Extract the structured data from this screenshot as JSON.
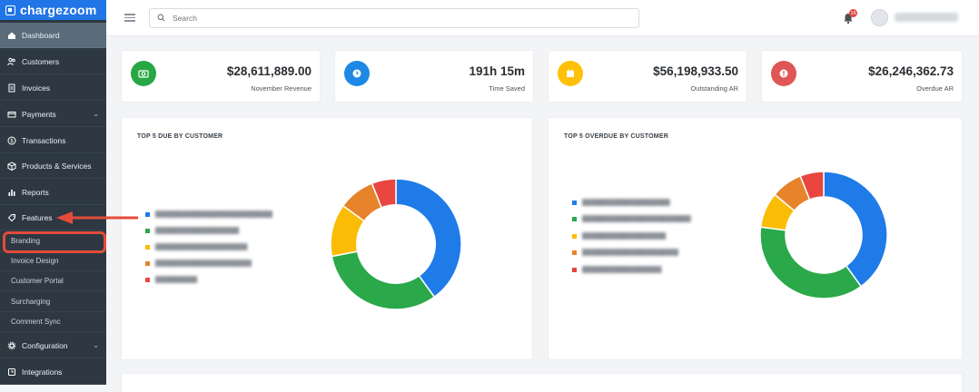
{
  "brand": {
    "name": "chargezoom"
  },
  "search": {
    "placeholder": "Search"
  },
  "notifications": {
    "count": "19"
  },
  "sidebar": {
    "items": [
      {
        "label": "Dashboard",
        "icon": "home-icon"
      },
      {
        "label": "Customers",
        "icon": "users-icon"
      },
      {
        "label": "Invoices",
        "icon": "invoice-icon"
      },
      {
        "label": "Payments",
        "icon": "card-icon"
      },
      {
        "label": "Transactions",
        "icon": "dollar-icon"
      },
      {
        "label": "Products & Services",
        "icon": "box-icon"
      },
      {
        "label": "Reports",
        "icon": "bar-chart-icon"
      },
      {
        "label": "Features",
        "icon": "tag-icon"
      },
      {
        "label": "Configuration",
        "icon": "gear-icon"
      },
      {
        "label": "Integrations",
        "icon": "plug-icon"
      }
    ],
    "sub_items": [
      {
        "label": "Branding"
      },
      {
        "label": "Invoice Design"
      },
      {
        "label": "Customer Portal"
      },
      {
        "label": "Surcharging"
      },
      {
        "label": "Comment Sync"
      }
    ]
  },
  "stats": [
    {
      "value": "$28,611,889.00",
      "label": "November Revenue",
      "color": "#28a745",
      "icon": "camera-icon"
    },
    {
      "value": "191h 15m",
      "label": "Time Saved",
      "color": "#1e88e5",
      "icon": "clock-icon"
    },
    {
      "value": "$56,198,933.50",
      "label": "Outstanding AR",
      "color": "#ffc107",
      "icon": "calendar-icon"
    },
    {
      "value": "$26,246,362.73",
      "label": "Overdue AR",
      "color": "#e05555",
      "icon": "alert-icon"
    }
  ],
  "panels": {
    "due": {
      "title": "TOP 5 DUE BY CUSTOMER"
    },
    "overdue": {
      "title": "TOP 5 OVERDUE BY CUSTOMER"
    }
  },
  "chart_data": [
    {
      "type": "pie",
      "title": "TOP 5 DUE BY CUSTOMER",
      "donut": true,
      "categories": [
        "",
        "",
        "",
        "",
        ""
      ],
      "values": [
        40,
        32,
        13,
        9,
        6
      ],
      "colors": [
        "#1e7be8",
        "#2aa84a",
        "#fbbc05",
        "#e6832b",
        "#e8463f"
      ]
    },
    {
      "type": "pie",
      "title": "TOP 5 OVERDUE BY CUSTOMER",
      "donut": true,
      "categories": [
        "",
        "",
        "",
        "",
        ""
      ],
      "values": [
        40,
        37,
        9,
        8,
        6
      ],
      "colors": [
        "#1e7be8",
        "#2aa84a",
        "#fbbc05",
        "#e6832b",
        "#e8463f"
      ]
    }
  ],
  "colors": {
    "sidebar_bg": "#2d3843",
    "brand_blue": "#2175e6",
    "accent_red": "#e54b3a"
  }
}
